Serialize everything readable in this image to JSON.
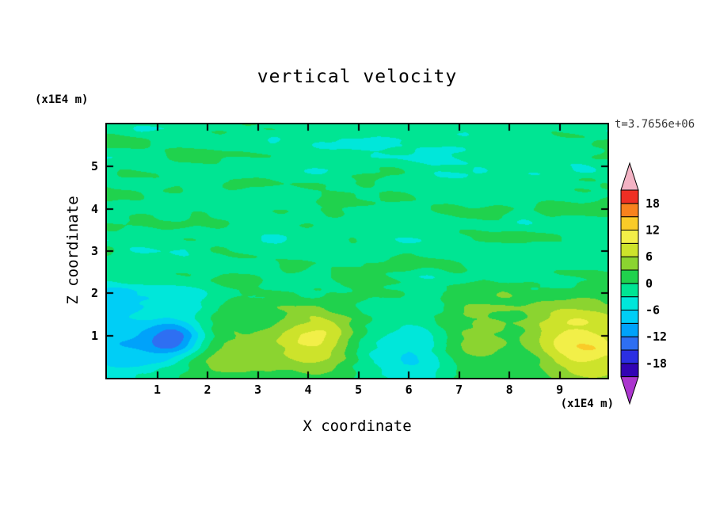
{
  "page": {
    "background": "#ffffff",
    "text_color": "#000000",
    "time_color": "#3a3a3a"
  },
  "chart_data": {
    "type": "heatmap",
    "title": "vertical velocity",
    "time_label": "t=3.7656e+06",
    "xlabel": "X coordinate",
    "ylabel": "Z coordinate",
    "x_axis_units": "(x1E4 m)",
    "y_axis_units": "(x1E4 m)",
    "xlim": [
      0,
      9.95
    ],
    "ylim": [
      0,
      6.0
    ],
    "x_ticks": [
      1,
      2,
      3,
      4,
      5,
      6,
      7,
      8,
      9
    ],
    "y_ticks": [
      1,
      2,
      3,
      4,
      5
    ],
    "grid": false,
    "legend_position": "right-colorbar",
    "contour_interval": 3,
    "level_boundaries": [
      -21,
      -18,
      -15,
      -12,
      -9,
      -6,
      -3,
      0,
      3,
      6,
      9,
      12,
      15,
      18,
      21
    ],
    "colorbar_values": [
      18,
      12,
      6,
      0,
      -6,
      -12,
      -18
    ],
    "colorbar_labels": [
      "18",
      "12",
      "6",
      "0",
      "-6",
      "-12",
      "-18"
    ],
    "cell_colors": [
      "#3203B4",
      "#2B2FE3",
      "#2E6FF2",
      "#00A2FA",
      "#00CEF6",
      "#00E7DA",
      "#00E593",
      "#20D24D",
      "#8BD430",
      "#CDE32B",
      "#F2EF48",
      "#FACB28",
      "#F8821D",
      "#EF2F24"
    ],
    "under_arrow_color": "#AB36CE",
    "over_arrow_color": "#F3B3C4",
    "field_description": "Mostly near-zero green field with elongated horizontal wave streaks in the upper region; strong localized extrema near the bottom boundary.",
    "texture": {
      "bias": -0.95,
      "amp1": 2.55,
      "amp2": 1.35,
      "calm_below_z": 0.9,
      "active_above_z": 2.1
    },
    "features": [
      {
        "x": 1.35,
        "z": 0.92,
        "sx": 0.4,
        "sz": 0.32,
        "a": -10.0,
        "note": "blue minimum"
      },
      {
        "x": 1.25,
        "z": 1.0,
        "sx": 0.95,
        "sz": 0.65,
        "a": -4.3,
        "note": "cyan halo"
      },
      {
        "x": 0.05,
        "z": 1.55,
        "sx": 0.45,
        "sz": 0.95,
        "a": -4.2,
        "note": "left-edge cyan"
      },
      {
        "x": 0.45,
        "z": 0.55,
        "sx": 0.55,
        "sz": 0.5,
        "a": -3.4,
        "note": "lower-left cyan"
      },
      {
        "x": 2.25,
        "z": 1.05,
        "sx": 0.55,
        "sz": 0.5,
        "a": 4.4,
        "note": "green patch"
      },
      {
        "x": 2.1,
        "z": 0.25,
        "sx": 0.85,
        "sz": 0.45,
        "a": 4.0,
        "note": "bottom green band"
      },
      {
        "x": 4.2,
        "z": 0.85,
        "sx": 0.6,
        "sz": 0.5,
        "a": 9.0,
        "note": "yellow maximum"
      },
      {
        "x": 4.25,
        "z": 0.95,
        "sx": 1.3,
        "sz": 0.95,
        "a": 2.8,
        "note": "green surround"
      },
      {
        "x": 5.35,
        "z": 0.7,
        "sx": 0.7,
        "sz": 0.55,
        "a": -5.2,
        "note": "cyan region"
      },
      {
        "x": 6.3,
        "z": 0.75,
        "sx": 0.45,
        "sz": 0.65,
        "a": -4.8,
        "note": "cyan band"
      },
      {
        "x": 7.15,
        "z": 0.95,
        "sx": 0.65,
        "sz": 0.6,
        "a": 3.8,
        "note": "green patch"
      },
      {
        "x": 9.3,
        "z": 0.88,
        "sx": 0.78,
        "sz": 0.55,
        "a": 8.8,
        "note": "yellow maximum right"
      },
      {
        "x": 9.0,
        "z": 1.15,
        "sx": 1.4,
        "sz": 0.95,
        "a": 3.0,
        "note": "green surround right"
      },
      {
        "x": 9.9,
        "z": 0.25,
        "sx": 0.7,
        "sz": 0.5,
        "a": 3.0,
        "note": "corner patch"
      },
      {
        "x": 8.3,
        "z": 0.6,
        "sx": 0.45,
        "sz": 0.4,
        "a": -3.0,
        "note": "small cyan dip"
      }
    ]
  }
}
